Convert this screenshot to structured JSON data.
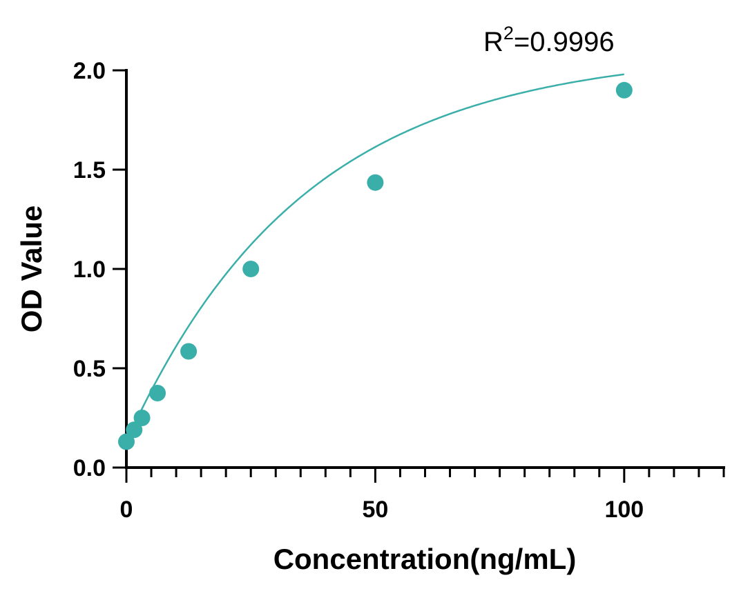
{
  "chart_data": {
    "type": "scatter",
    "xlabel": "Concentration(ng/mL)",
    "ylabel": "OD Value",
    "xlim": [
      0,
      120
    ],
    "ylim": [
      0,
      2.0
    ],
    "x_ticks": [
      0,
      50,
      100
    ],
    "x_minor_step": 5,
    "y_ticks": [
      0.0,
      0.5,
      1.0,
      1.5,
      2.0
    ],
    "y_tick_labels": [
      "0.0",
      "0.5",
      "1.0",
      "1.5",
      "2.0"
    ],
    "x_tick_labels": [
      "0",
      "50",
      "100"
    ],
    "grid": false,
    "color": "#3aafa9",
    "points": [
      {
        "x": 0,
        "y": 0.13
      },
      {
        "x": 1.56,
        "y": 0.19
      },
      {
        "x": 3.13,
        "y": 0.25
      },
      {
        "x": 6.25,
        "y": 0.375
      },
      {
        "x": 12.5,
        "y": 0.585
      },
      {
        "x": 25,
        "y": 1.0
      },
      {
        "x": 50,
        "y": 1.435
      },
      {
        "x": 100,
        "y": 1.9
      }
    ],
    "fit": {
      "type": "exponential-rise",
      "y0": 0.13,
      "ymax": 2.1,
      "k": 0.028
    },
    "annotation": {
      "text_base": "R",
      "text_sup": "2",
      "text_rest": "=0.9996"
    }
  }
}
